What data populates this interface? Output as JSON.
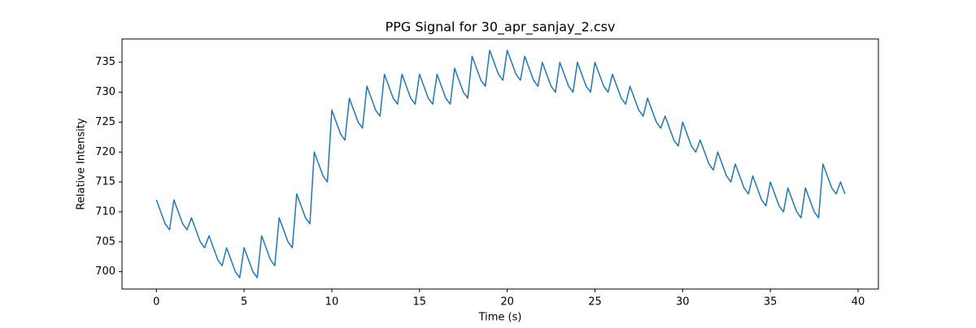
{
  "chart_data": {
    "type": "line",
    "title": "PPG Signal for 30_apr_sanjay_2.csv",
    "x_label": "Time (s)",
    "y_label": "Relative Intensity",
    "x": [
      0,
      0.25,
      0.5,
      0.75,
      1,
      1.25,
      1.5,
      1.75,
      2,
      2.25,
      2.5,
      2.75,
      3,
      3.25,
      3.5,
      3.75,
      4,
      4.25,
      4.5,
      4.75,
      5,
      5.25,
      5.5,
      5.75,
      6,
      6.25,
      6.5,
      6.75,
      7,
      7.25,
      7.5,
      7.75,
      8,
      8.25,
      8.5,
      8.75,
      9,
      9.25,
      9.5,
      9.75,
      10,
      10.25,
      10.5,
      10.75,
      11,
      11.25,
      11.5,
      11.75,
      12,
      12.25,
      12.5,
      12.75,
      13,
      13.25,
      13.5,
      13.75,
      14,
      14.25,
      14.5,
      14.75,
      15,
      15.25,
      15.5,
      15.75,
      16,
      16.25,
      16.5,
      16.75,
      17,
      17.25,
      17.5,
      17.75,
      18,
      18.25,
      18.5,
      18.75,
      19,
      19.25,
      19.5,
      19.75,
      20,
      20.25,
      20.5,
      20.75,
      21,
      21.25,
      21.5,
      21.75,
      22,
      22.25,
      22.5,
      22.75,
      23,
      23.25,
      23.5,
      23.75,
      24,
      24.25,
      24.5,
      24.75,
      25,
      25.25,
      25.5,
      25.75,
      26,
      26.25,
      26.5,
      26.75,
      27,
      27.25,
      27.5,
      27.75,
      28,
      28.25,
      28.5,
      28.75,
      29,
      29.25,
      29.5,
      29.75,
      30,
      30.25,
      30.5,
      30.75,
      31,
      31.25,
      31.5,
      31.75,
      32,
      32.25,
      32.5,
      32.75,
      33,
      33.25,
      33.5,
      33.75,
      34,
      34.25,
      34.5,
      34.75,
      35,
      35.25,
      35.5,
      35.75,
      36,
      36.25,
      36.5,
      36.75,
      37,
      37.25,
      37.5,
      37.75,
      38,
      38.25,
      38.5,
      38.75,
      39,
      39.25
    ],
    "series": [
      {
        "name": "PPG",
        "color": "#1f77b4",
        "values": [
          712,
          710,
          708,
          707,
          712,
          710,
          708,
          707,
          709,
          707,
          705,
          704,
          706,
          704,
          702,
          701,
          704,
          702,
          700,
          699,
          704,
          702,
          700,
          699,
          706,
          704,
          702,
          701,
          709,
          707,
          705,
          704,
          713,
          711,
          709,
          708,
          720,
          718,
          716,
          715,
          727,
          725,
          723,
          722,
          729,
          727,
          725,
          724,
          731,
          729,
          727,
          726,
          733,
          731,
          729,
          728,
          733,
          731,
          729,
          728,
          733,
          731,
          729,
          728,
          733,
          731,
          729,
          728,
          734,
          732,
          730,
          729,
          736,
          734,
          732,
          731,
          737,
          735,
          733,
          732,
          737,
          735,
          733,
          732,
          736,
          734,
          732,
          731,
          735,
          733,
          731,
          730,
          735,
          733,
          731,
          730,
          735,
          733,
          731,
          730,
          735,
          733,
          731,
          730,
          733,
          731,
          729,
          728,
          731,
          729,
          727,
          726,
          729,
          727,
          725,
          724,
          726,
          724,
          722,
          721,
          725,
          723,
          721,
          720,
          722,
          720,
          718,
          717,
          720,
          718,
          716,
          715,
          718,
          716,
          714,
          713,
          716,
          714,
          712,
          711,
          715,
          713,
          711,
          710,
          714,
          712,
          710,
          709,
          714,
          712,
          710,
          709,
          718,
          716,
          714,
          713,
          715,
          713
        ]
      }
    ],
    "xlim": [
      -1.96,
      41.16
    ],
    "ylim": [
      697.1,
      738.9
    ],
    "xticks": [
      0,
      5,
      10,
      15,
      20,
      25,
      30,
      35,
      40
    ],
    "yticks": [
      700,
      705,
      710,
      715,
      720,
      725,
      730,
      735
    ],
    "grid": false
  }
}
